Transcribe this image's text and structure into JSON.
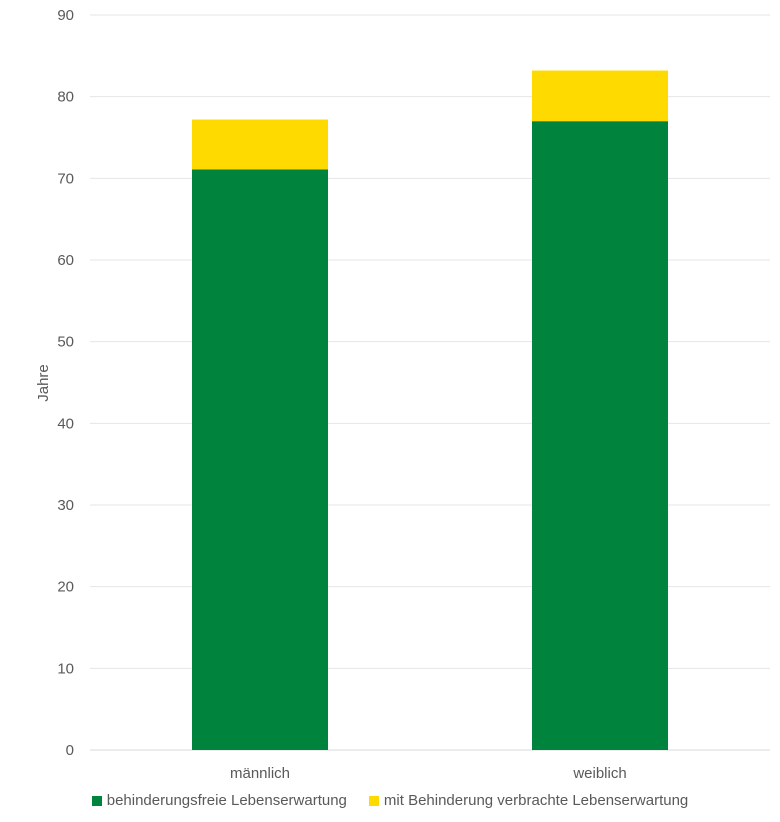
{
  "chart_data": {
    "type": "bar",
    "stacked": true,
    "title": "",
    "xlabel": "",
    "ylabel": "Jahre",
    "ylim": [
      0,
      90
    ],
    "yticks": [
      0,
      10,
      20,
      30,
      40,
      50,
      60,
      70,
      80,
      90
    ],
    "grid": true,
    "legend_position": "bottom",
    "categories": [
      "männlich",
      "weiblich"
    ],
    "series": [
      {
        "name": "behinderungsfreie Lebenserwartung",
        "color": "#00843D",
        "values": [
          71.1,
          77.0
        ]
      },
      {
        "name": "mit Behinderung verbrachte Lebenserwartung",
        "color": "#FFDA00",
        "values": [
          6.1,
          6.2
        ]
      }
    ],
    "totals": [
      77.2,
      83.2
    ]
  }
}
